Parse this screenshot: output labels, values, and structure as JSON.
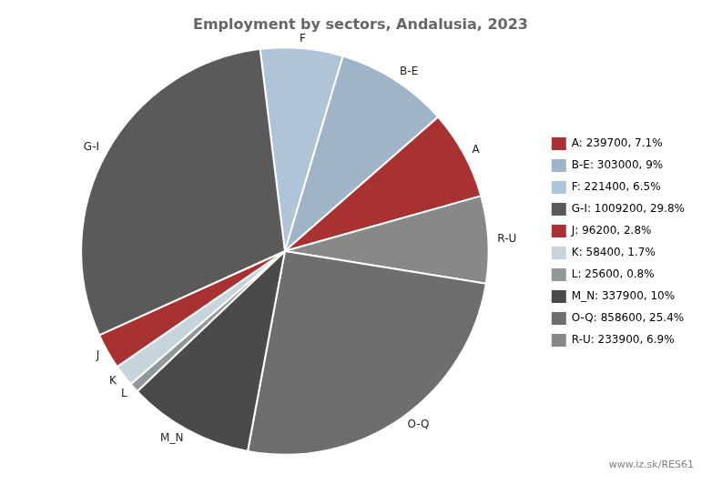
{
  "chart_data": {
    "type": "pie",
    "title": "Employment by sectors, Andalusia, 2023",
    "categories": [
      "F",
      "B-E",
      "A",
      "R-U",
      "O-Q",
      "M_N",
      "L",
      "K",
      "J",
      "G-I"
    ],
    "values": [
      221400,
      303000,
      239700,
      233900,
      858600,
      337900,
      25600,
      58400,
      96200,
      1009200
    ],
    "colors": [
      "#b0c4d8",
      "#a0b4c8",
      "#a83232",
      "#888888",
      "#6e6e6e",
      "#4a4a4a",
      "#909898",
      "#c8d4dc",
      "#a83232",
      "#5a5a5a"
    ],
    "legend": "right",
    "legend_entries": [
      {
        "label": "A: 239700, 7.1%",
        "color": "#a83232"
      },
      {
        "label": "B-E: 303000, 9%",
        "color": "#a0b4c8"
      },
      {
        "label": "F: 221400, 6.5%",
        "color": "#b0c4d8"
      },
      {
        "label": "G-I: 1009200, 29.8%",
        "color": "#5a5a5a"
      },
      {
        "label": "J: 96200, 2.8%",
        "color": "#a83232"
      },
      {
        "label": "K: 58400, 1.7%",
        "color": "#c8d4dc"
      },
      {
        "label": "L: 25600, 0.8%",
        "color": "#909898"
      },
      {
        "label": "M_N: 337900, 10%",
        "color": "#4a4a4a"
      },
      {
        "label": "O-Q: 858600, 25.4%",
        "color": "#6e6e6e"
      },
      {
        "label": "R-U: 233900, 6.9%",
        "color": "#888888"
      }
    ],
    "annotations": [
      "www.iz.sk/RES61"
    ]
  }
}
